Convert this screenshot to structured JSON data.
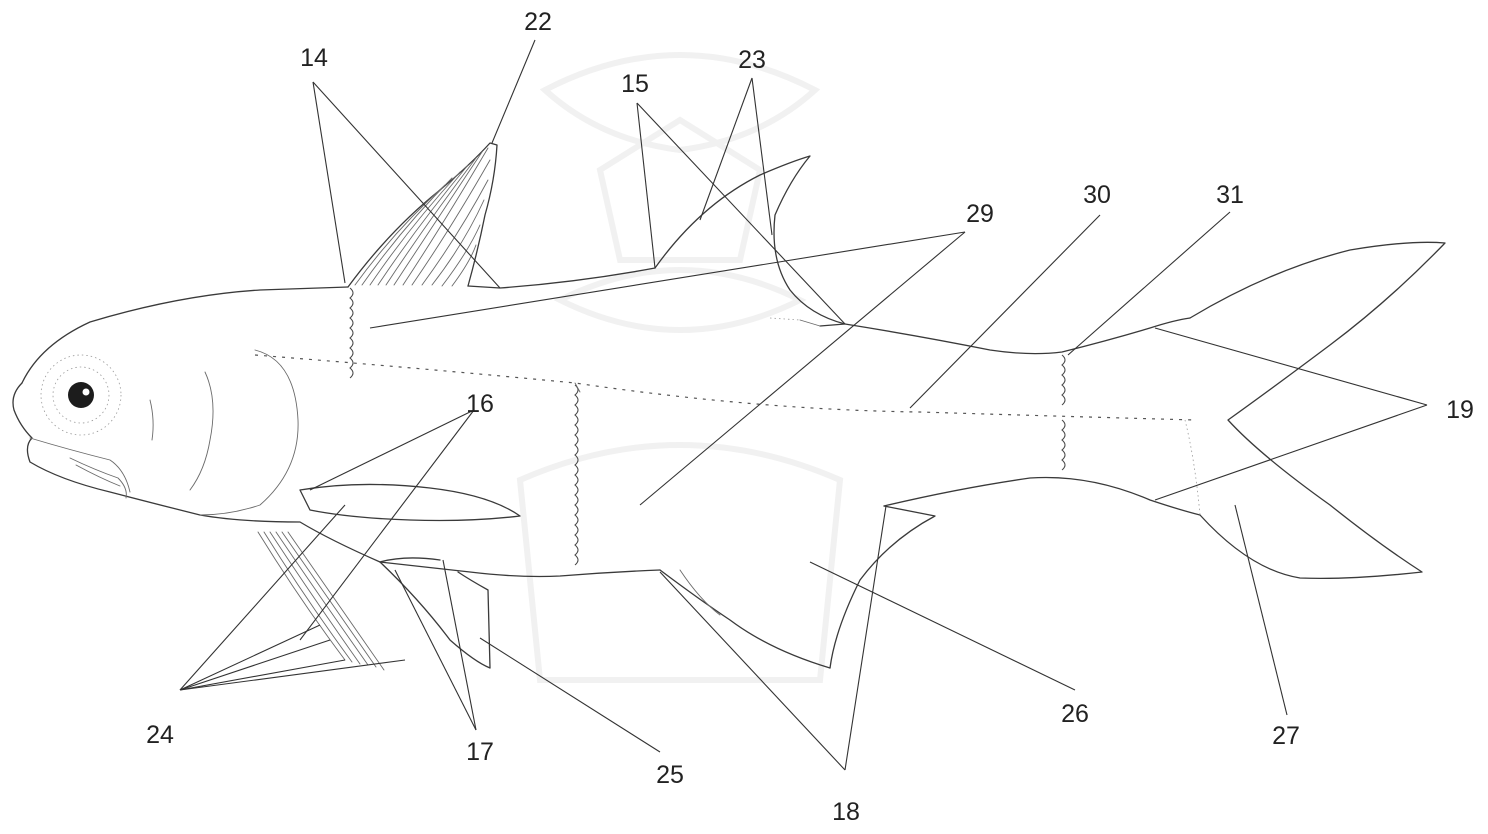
{
  "labels": {
    "l14": "14",
    "l15": "15",
    "l16": "16",
    "l17": "17",
    "l18": "18",
    "l19": "19",
    "l22": "22",
    "l23": "23",
    "l24": "24",
    "l25": "25",
    "l26": "26",
    "l27": "27",
    "l29": "29",
    "l30": "30",
    "l31": "31"
  }
}
